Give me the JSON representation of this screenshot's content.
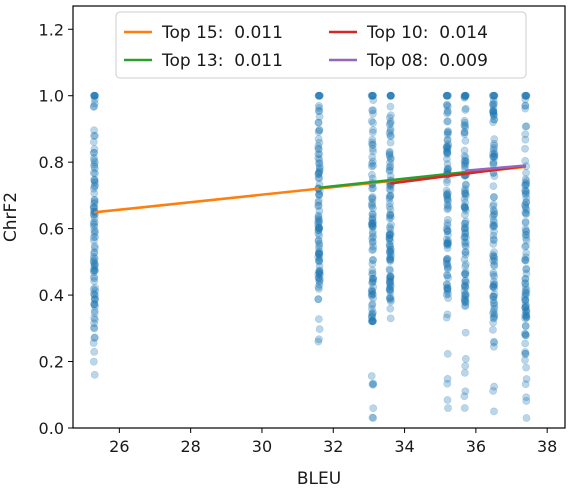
{
  "chart_data": {
    "type": "scatter",
    "xlabel": "BLEU",
    "ylabel": "ChrF2",
    "xlim": [
      24.7,
      38.5
    ],
    "ylim": [
      0.0,
      1.27
    ],
    "xticks": [
      "26",
      "28",
      "30",
      "32",
      "34",
      "36",
      "38"
    ],
    "yticks": [
      "0.0",
      "0.2",
      "0.4",
      "0.6",
      "0.8",
      "1.0",
      "1.2"
    ],
    "grid": false,
    "legend_position": "top-center",
    "scatter": {
      "name": "",
      "color": "#1f77b4",
      "columns": [
        {
          "x": 25.3,
          "min": 0.16,
          "max": 1.0,
          "dense_low": 0.3,
          "dense_high": 1.0
        },
        {
          "x": 31.6,
          "min": 0.26,
          "max": 1.0,
          "dense_low": 0.42,
          "dense_high": 1.0
        },
        {
          "x": 33.1,
          "min": 0.03,
          "max": 1.0,
          "dense_low": 0.3,
          "dense_high": 1.0
        },
        {
          "x": 33.6,
          "min": 0.33,
          "max": 1.0,
          "dense_low": 0.4,
          "dense_high": 1.0
        },
        {
          "x": 35.2,
          "min": 0.06,
          "max": 1.0,
          "dense_low": 0.38,
          "dense_high": 1.0
        },
        {
          "x": 35.7,
          "min": 0.06,
          "max": 1.0,
          "dense_low": 0.35,
          "dense_high": 1.0
        },
        {
          "x": 36.5,
          "min": 0.05,
          "max": 1.0,
          "dense_low": 0.3,
          "dense_high": 1.0
        },
        {
          "x": 37.4,
          "min": 0.03,
          "max": 1.0,
          "dense_low": 0.22,
          "dense_high": 1.0
        }
      ]
    },
    "series": [
      {
        "name": "Top 15:  0.011",
        "color": "#ff7f0e",
        "x": [
          25.3,
          37.4
        ],
        "y": [
          0.649,
          0.786
        ]
      },
      {
        "name": "Top 13:  0.011",
        "color": "#2ca02c",
        "x": [
          31.6,
          37.4
        ],
        "y": [
          0.723,
          0.789
        ]
      },
      {
        "name": "Top 10:  0.014",
        "color": "#d62728",
        "x": [
          33.6,
          37.4
        ],
        "y": [
          0.736,
          0.789
        ]
      },
      {
        "name": "Top 08:  0.009",
        "color": "#9467bd",
        "x": [
          35.7,
          37.4
        ],
        "y": [
          0.774,
          0.79
        ]
      }
    ]
  }
}
